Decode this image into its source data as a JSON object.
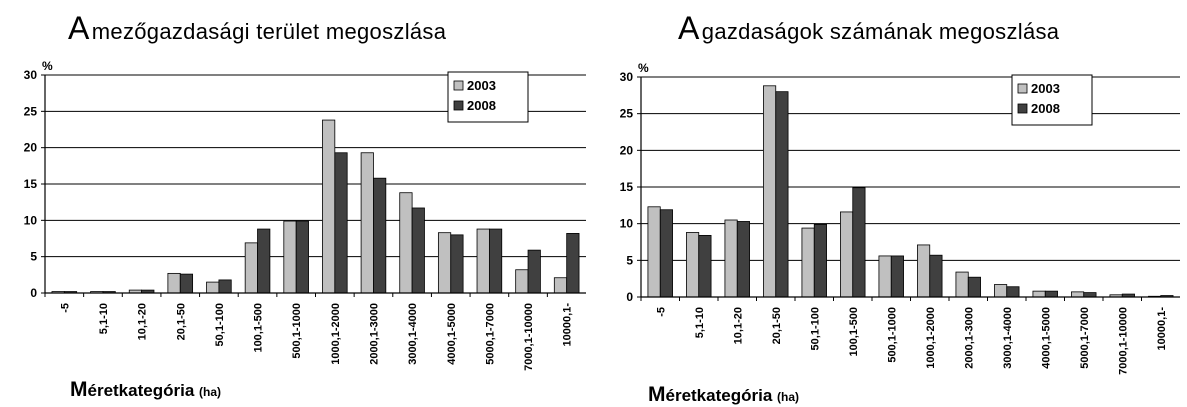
{
  "chart_data": [
    {
      "type": "bar",
      "title_initial": "A",
      "title_rest": "mezőgazdasági terület megoszlása",
      "ylabel": "%",
      "xlabel_initial": "M",
      "xlabel_rest": "éretkategória",
      "xlabel_unit": "(ha)",
      "ylim": [
        0,
        30
      ],
      "yticks": [
        "0",
        "5",
        "10",
        "15",
        "20",
        "25",
        "30"
      ],
      "grid": true,
      "legend_position": "top-right",
      "categories": [
        "-5",
        "5,1-10",
        "10,1-20",
        "20,1-50",
        "50,1-100",
        "100,1-500",
        "500,1-1000",
        "1000,1-2000",
        "2000,1-3000",
        "3000,1-4000",
        "4000,1-5000",
        "5000,1-7000",
        "7000,1-10000",
        "10000,1-"
      ],
      "series": [
        {
          "name": "2003",
          "color": "#c0c0c0",
          "values": [
            0.2,
            0.2,
            0.4,
            2.7,
            1.5,
            6.9,
            9.9,
            23.8,
            19.3,
            13.8,
            8.3,
            8.8,
            3.2,
            2.1
          ]
        },
        {
          "name": "2008",
          "color": "#404040",
          "values": [
            0.2,
            0.2,
            0.4,
            2.6,
            1.8,
            8.8,
            9.9,
            19.3,
            15.8,
            11.7,
            8.0,
            8.8,
            5.9,
            8.2
          ]
        }
      ]
    },
    {
      "type": "bar",
      "title_initial": "A",
      "title_rest": "gazdaságok számának megoszlása",
      "ylabel": "%",
      "xlabel_initial": "M",
      "xlabel_rest": "éretkategória",
      "xlabel_unit": "(ha)",
      "ylim": [
        0,
        30
      ],
      "yticks": [
        "0",
        "5",
        "10",
        "15",
        "20",
        "25",
        "30"
      ],
      "grid": true,
      "legend_position": "top-right",
      "categories": [
        "-5",
        "5,1-10",
        "10,1-20",
        "20,1-50",
        "50,1-100",
        "100,1-500",
        "500,1-1000",
        "1000,1-2000",
        "2000,1-3000",
        "3000,1-4000",
        "4000,1-5000",
        "5000,1-7000",
        "7000,1-10000",
        "10000,1-"
      ],
      "series": [
        {
          "name": "2003",
          "color": "#c0c0c0",
          "values": [
            12.3,
            8.8,
            10.5,
            28.8,
            9.4,
            11.6,
            5.6,
            7.1,
            3.4,
            1.7,
            0.8,
            0.7,
            0.3,
            0.1
          ]
        },
        {
          "name": "2008",
          "color": "#404040",
          "values": [
            11.9,
            8.4,
            10.3,
            28.0,
            9.9,
            14.9,
            5.6,
            5.7,
            2.7,
            1.4,
            0.8,
            0.6,
            0.4,
            0.2
          ]
        }
      ]
    }
  ]
}
